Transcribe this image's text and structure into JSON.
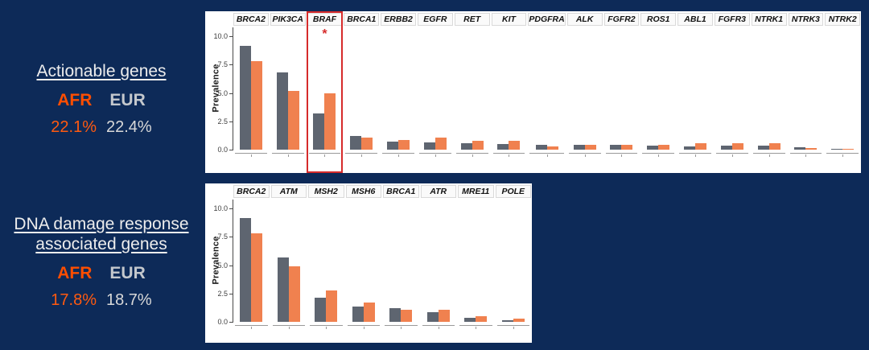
{
  "page": {
    "background": "#0d2a58"
  },
  "left_panel": {
    "colors": {
      "afr": "#ff4e00",
      "eur": "#c4c8cd",
      "afr_value": "#ff5a10",
      "eur_value": "#d8d8d8"
    },
    "actionable": {
      "title": "Actionable genes",
      "afr_label": "AFR",
      "eur_label": "EUR",
      "afr_value": "22.1%",
      "eur_value": "22.4%"
    },
    "ddr": {
      "title_line1": "DNA damage response",
      "title_line2": "associated genes",
      "afr_label": "AFR",
      "eur_label": "EUR",
      "afr_value": "17.8%",
      "eur_value": "18.7%"
    }
  },
  "chart_data": [
    {
      "type": "bar",
      "panel": "actionable-genes",
      "ylabel": "Prevalence",
      "yticks": [
        0.0,
        2.5,
        5.0,
        7.5,
        10.0
      ],
      "ylim": [
        0,
        10.8
      ],
      "grid": false,
      "legend": "none (series identified by color: gray=EUR, orange=AFR)",
      "categories": [
        "BRCA2",
        "PIK3CA",
        "BRAF",
        "BRCA1",
        "ERBB2",
        "EGFR",
        "RET",
        "KIT",
        "PDGFRA",
        "ALK",
        "FGFR2",
        "ROS1",
        "ABL1",
        "FGFR3",
        "NTRK1",
        "NTRK3",
        "NTRK2"
      ],
      "series": [
        {
          "name": "EUR",
          "color": "#5e6570",
          "values": [
            9.2,
            6.8,
            3.2,
            1.2,
            0.7,
            0.65,
            0.55,
            0.5,
            0.45,
            0.4,
            0.4,
            0.35,
            0.3,
            0.35,
            0.35,
            0.2,
            0.05
          ]
        },
        {
          "name": "AFR",
          "color": "#f0814f",
          "values": [
            7.8,
            5.2,
            5.0,
            1.1,
            0.85,
            1.05,
            0.75,
            0.8,
            0.25,
            0.4,
            0.4,
            0.45,
            0.55,
            0.6,
            0.6,
            0.15,
            0.05
          ]
        }
      ],
      "highlight": {
        "category": "BRAF",
        "marker": "*",
        "color": "#d62b2b"
      }
    },
    {
      "type": "bar",
      "panel": "dna-damage-response-genes",
      "ylabel": "Prevalence",
      "yticks": [
        0.0,
        2.5,
        5.0,
        7.5,
        10.0
      ],
      "ylim": [
        0,
        10.8
      ],
      "grid": false,
      "legend": "none (series identified by color: gray=EUR, orange=AFR)",
      "categories": [
        "BRCA2",
        "ATM",
        "MSH2",
        "MSH6",
        "BRCA1",
        "ATR",
        "MRE11",
        "POLE"
      ],
      "series": [
        {
          "name": "EUR",
          "color": "#5e6570",
          "values": [
            9.2,
            5.7,
            2.1,
            1.35,
            1.2,
            0.85,
            0.35,
            0.15
          ]
        },
        {
          "name": "AFR",
          "color": "#f0814f",
          "values": [
            7.8,
            4.9,
            2.75,
            1.7,
            1.1,
            1.05,
            0.5,
            0.25
          ]
        }
      ],
      "highlight": null
    }
  ]
}
